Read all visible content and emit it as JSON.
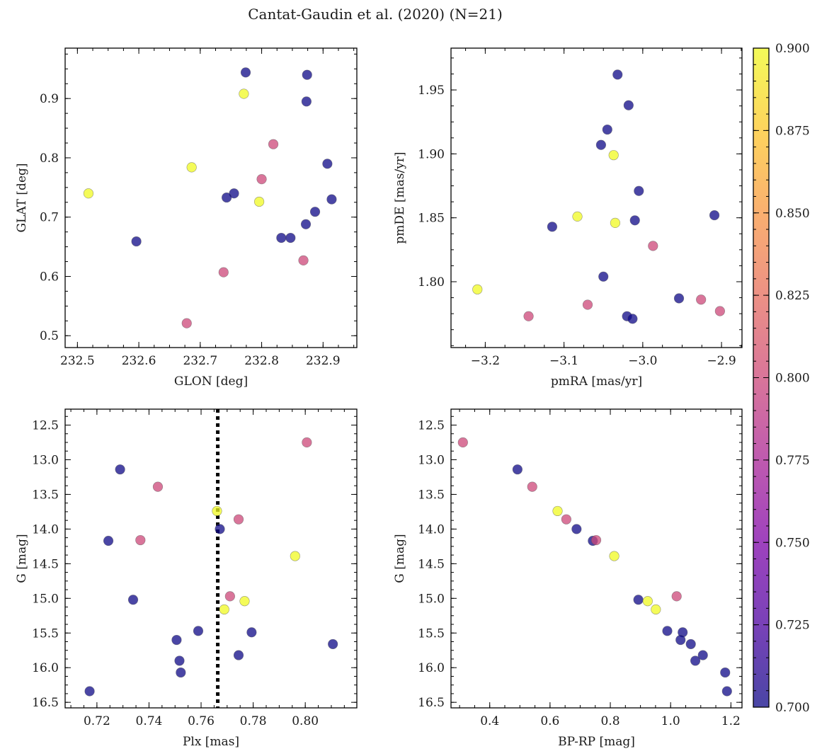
{
  "title": "Cantat-Gaudin et al. (2020) (N=21)",
  "colorbar": {
    "min": 0.7,
    "max": 0.9,
    "ticks": [
      0.7,
      0.725,
      0.75,
      0.775,
      0.8,
      0.825,
      0.85,
      0.875,
      0.9
    ],
    "tick_labels": [
      "0.700",
      "0.725",
      "0.750",
      "0.775",
      "0.800",
      "0.825",
      "0.850",
      "0.875",
      "0.900"
    ],
    "colormap": "plasma"
  },
  "marker": {
    "alpha": 0.75,
    "edge_color": "#555555"
  },
  "chart_data": [
    {
      "type": "scatter",
      "id": "glon-glat",
      "xlabel": "GLON [deg]",
      "ylabel": "GLAT [deg]",
      "xlim": [
        232.48,
        232.955
      ],
      "ylim": [
        0.48,
        0.985
      ],
      "y_inverted": false,
      "xticks": [
        232.5,
        232.6,
        232.7,
        232.8,
        232.9
      ],
      "xtick_labels": [
        "232.5",
        "232.6",
        "232.7",
        "232.8",
        "232.9"
      ],
      "yticks": [
        0.5,
        0.6,
        0.7,
        0.8,
        0.9
      ],
      "ytick_labels": [
        "0.5",
        "0.6",
        "0.7",
        "0.8",
        "0.9"
      ],
      "x_minor_step": 0.025,
      "y_minor_step": 0.025,
      "points": [
        {
          "x": 232.774,
          "y": 0.944,
          "c": 0.7
        },
        {
          "x": 232.874,
          "y": 0.94,
          "c": 0.7
        },
        {
          "x": 232.771,
          "y": 0.908,
          "c": 0.9
        },
        {
          "x": 232.873,
          "y": 0.895,
          "c": 0.7
        },
        {
          "x": 232.819,
          "y": 0.823,
          "c": 0.8
        },
        {
          "x": 232.907,
          "y": 0.79,
          "c": 0.7
        },
        {
          "x": 232.686,
          "y": 0.784,
          "c": 0.9
        },
        {
          "x": 232.8,
          "y": 0.764,
          "c": 0.8
        },
        {
          "x": 232.518,
          "y": 0.74,
          "c": 0.9
        },
        {
          "x": 232.755,
          "y": 0.74,
          "c": 0.7
        },
        {
          "x": 232.743,
          "y": 0.733,
          "c": 0.7
        },
        {
          "x": 232.914,
          "y": 0.73,
          "c": 0.7
        },
        {
          "x": 232.796,
          "y": 0.726,
          "c": 0.9
        },
        {
          "x": 232.887,
          "y": 0.709,
          "c": 0.7
        },
        {
          "x": 232.872,
          "y": 0.688,
          "c": 0.7
        },
        {
          "x": 232.832,
          "y": 0.665,
          "c": 0.7
        },
        {
          "x": 232.847,
          "y": 0.665,
          "c": 0.7
        },
        {
          "x": 232.596,
          "y": 0.659,
          "c": 0.7
        },
        {
          "x": 232.868,
          "y": 0.627,
          "c": 0.8
        },
        {
          "x": 232.738,
          "y": 0.607,
          "c": 0.8
        },
        {
          "x": 232.678,
          "y": 0.521,
          "c": 0.8
        }
      ]
    },
    {
      "type": "scatter",
      "id": "pmra-pmde",
      "xlabel": "pmRA [mas/yr]",
      "ylabel": "pmDE [mas/yr]",
      "xlim": [
        -3.2435,
        -2.874
      ],
      "ylim": [
        1.7485,
        1.9827
      ],
      "y_inverted": false,
      "xticks": [
        -3.2,
        -3.1,
        -3.0,
        -2.9
      ],
      "xtick_labels": [
        "−3.2",
        "−3.1",
        "−3.0",
        "−2.9"
      ],
      "yticks": [
        1.8,
        1.85,
        1.9,
        1.95
      ],
      "ytick_labels": [
        "1.80",
        "1.85",
        "1.90",
        "1.95"
      ],
      "x_minor_step": 0.025,
      "y_minor_step": 0.0125,
      "points": [
        {
          "x": -3.032,
          "y": 1.962,
          "c": 0.7
        },
        {
          "x": -3.018,
          "y": 1.938,
          "c": 0.7
        },
        {
          "x": -3.045,
          "y": 1.919,
          "c": 0.7
        },
        {
          "x": -3.053,
          "y": 1.907,
          "c": 0.7
        },
        {
          "x": -3.037,
          "y": 1.899,
          "c": 0.9
        },
        {
          "x": -3.005,
          "y": 1.871,
          "c": 0.7
        },
        {
          "x": -2.909,
          "y": 1.852,
          "c": 0.7
        },
        {
          "x": -3.083,
          "y": 1.851,
          "c": 0.9
        },
        {
          "x": -3.01,
          "y": 1.848,
          "c": 0.7
        },
        {
          "x": -3.035,
          "y": 1.846,
          "c": 0.9
        },
        {
          "x": -3.115,
          "y": 1.843,
          "c": 0.7
        },
        {
          "x": -2.987,
          "y": 1.828,
          "c": 0.8
        },
        {
          "x": -3.05,
          "y": 1.804,
          "c": 0.7
        },
        {
          "x": -3.21,
          "y": 1.794,
          "c": 0.9
        },
        {
          "x": -2.954,
          "y": 1.787,
          "c": 0.7
        },
        {
          "x": -2.926,
          "y": 1.786,
          "c": 0.8
        },
        {
          "x": -3.07,
          "y": 1.782,
          "c": 0.8
        },
        {
          "x": -2.902,
          "y": 1.777,
          "c": 0.8
        },
        {
          "x": -3.145,
          "y": 1.773,
          "c": 0.8
        },
        {
          "x": -3.02,
          "y": 1.773,
          "c": 0.7
        },
        {
          "x": -3.013,
          "y": 1.771,
          "c": 0.7
        }
      ]
    },
    {
      "type": "scatter",
      "id": "plx-g",
      "xlabel": "Plx [mas]",
      "ylabel": "G [mag]",
      "xlim": [
        0.7078,
        0.8198
      ],
      "ylim": [
        16.58,
        12.27
      ],
      "y_inverted": true,
      "xticks": [
        0.72,
        0.74,
        0.76,
        0.78,
        0.8,
        0.82
      ],
      "xtick_labels": [
        "0.72",
        "0.74",
        "0.76",
        "0.78",
        "0.80",
        "0.82"
      ],
      "yticks": [
        12.5,
        13.0,
        13.5,
        14.0,
        14.5,
        15.0,
        15.5,
        16.0,
        16.5
      ],
      "ytick_labels": [
        "12.5",
        "13.0",
        "13.5",
        "14.0",
        "14.5",
        "15.0",
        "15.5",
        "16.0",
        "16.5"
      ],
      "x_minor_step": 0.005,
      "y_minor_step": 0.125,
      "vline": {
        "x": 0.7664,
        "style": "dotted",
        "color": "#000000"
      },
      "points": [
        {
          "x": 0.8006,
          "y": 12.75,
          "c": 0.8
        },
        {
          "x": 0.7289,
          "y": 13.14,
          "c": 0.7
        },
        {
          "x": 0.7434,
          "y": 13.39,
          "c": 0.8
        },
        {
          "x": 0.7661,
          "y": 13.74,
          "c": 0.9
        },
        {
          "x": 0.7744,
          "y": 13.86,
          "c": 0.8
        },
        {
          "x": 0.7672,
          "y": 14.0,
          "c": 0.7
        },
        {
          "x": 0.7244,
          "y": 14.17,
          "c": 0.7
        },
        {
          "x": 0.7367,
          "y": 14.16,
          "c": 0.8
        },
        {
          "x": 0.7961,
          "y": 14.39,
          "c": 0.9
        },
        {
          "x": 0.7711,
          "y": 14.97,
          "c": 0.8
        },
        {
          "x": 0.7339,
          "y": 15.02,
          "c": 0.7
        },
        {
          "x": 0.7767,
          "y": 15.04,
          "c": 0.9
        },
        {
          "x": 0.7689,
          "y": 15.16,
          "c": 0.9
        },
        {
          "x": 0.7589,
          "y": 15.47,
          "c": 0.7
        },
        {
          "x": 0.7794,
          "y": 15.49,
          "c": 0.7
        },
        {
          "x": 0.7506,
          "y": 15.6,
          "c": 0.7
        },
        {
          "x": 0.8106,
          "y": 15.66,
          "c": 0.7
        },
        {
          "x": 0.7744,
          "y": 15.82,
          "c": 0.7
        },
        {
          "x": 0.7517,
          "y": 15.9,
          "c": 0.7
        },
        {
          "x": 0.7522,
          "y": 16.07,
          "c": 0.7
        },
        {
          "x": 0.7172,
          "y": 16.34,
          "c": 0.7
        }
      ]
    },
    {
      "type": "scatter",
      "id": "bprp-g",
      "xlabel": "BP-RP [mag]",
      "ylabel": "G [mag]",
      "xlim": [
        0.2715,
        1.2368
      ],
      "ylim": [
        16.58,
        12.27
      ],
      "y_inverted": true,
      "xticks": [
        0.4,
        0.6,
        0.8,
        1.0,
        1.2
      ],
      "xtick_labels": [
        "0.4",
        "0.6",
        "0.8",
        "1.0",
        "1.2"
      ],
      "yticks": [
        12.5,
        13.0,
        13.5,
        14.0,
        14.5,
        15.0,
        15.5,
        16.0,
        16.5
      ],
      "ytick_labels": [
        "12.5",
        "13.0",
        "13.5",
        "14.0",
        "14.5",
        "15.0",
        "15.5",
        "16.0",
        "16.5"
      ],
      "x_minor_step": 0.05,
      "y_minor_step": 0.125,
      "points": [
        {
          "x": 0.311,
          "y": 12.75,
          "c": 0.8
        },
        {
          "x": 0.492,
          "y": 13.14,
          "c": 0.7
        },
        {
          "x": 0.541,
          "y": 13.39,
          "c": 0.8
        },
        {
          "x": 0.625,
          "y": 13.74,
          "c": 0.9
        },
        {
          "x": 0.654,
          "y": 13.86,
          "c": 0.8
        },
        {
          "x": 0.688,
          "y": 14.0,
          "c": 0.7
        },
        {
          "x": 0.742,
          "y": 14.17,
          "c": 0.7
        },
        {
          "x": 0.753,
          "y": 14.16,
          "c": 0.8
        },
        {
          "x": 0.813,
          "y": 14.39,
          "c": 0.9
        },
        {
          "x": 1.02,
          "y": 14.97,
          "c": 0.8
        },
        {
          "x": 0.893,
          "y": 15.02,
          "c": 0.7
        },
        {
          "x": 0.924,
          "y": 15.04,
          "c": 0.9
        },
        {
          "x": 0.951,
          "y": 15.16,
          "c": 0.9
        },
        {
          "x": 0.989,
          "y": 15.47,
          "c": 0.7
        },
        {
          "x": 1.04,
          "y": 15.49,
          "c": 0.7
        },
        {
          "x": 1.033,
          "y": 15.6,
          "c": 0.7
        },
        {
          "x": 1.067,
          "y": 15.66,
          "c": 0.7
        },
        {
          "x": 1.107,
          "y": 15.82,
          "c": 0.7
        },
        {
          "x": 1.082,
          "y": 15.9,
          "c": 0.7
        },
        {
          "x": 1.181,
          "y": 16.07,
          "c": 0.7
        },
        {
          "x": 1.187,
          "y": 16.34,
          "c": 0.7
        }
      ]
    }
  ]
}
